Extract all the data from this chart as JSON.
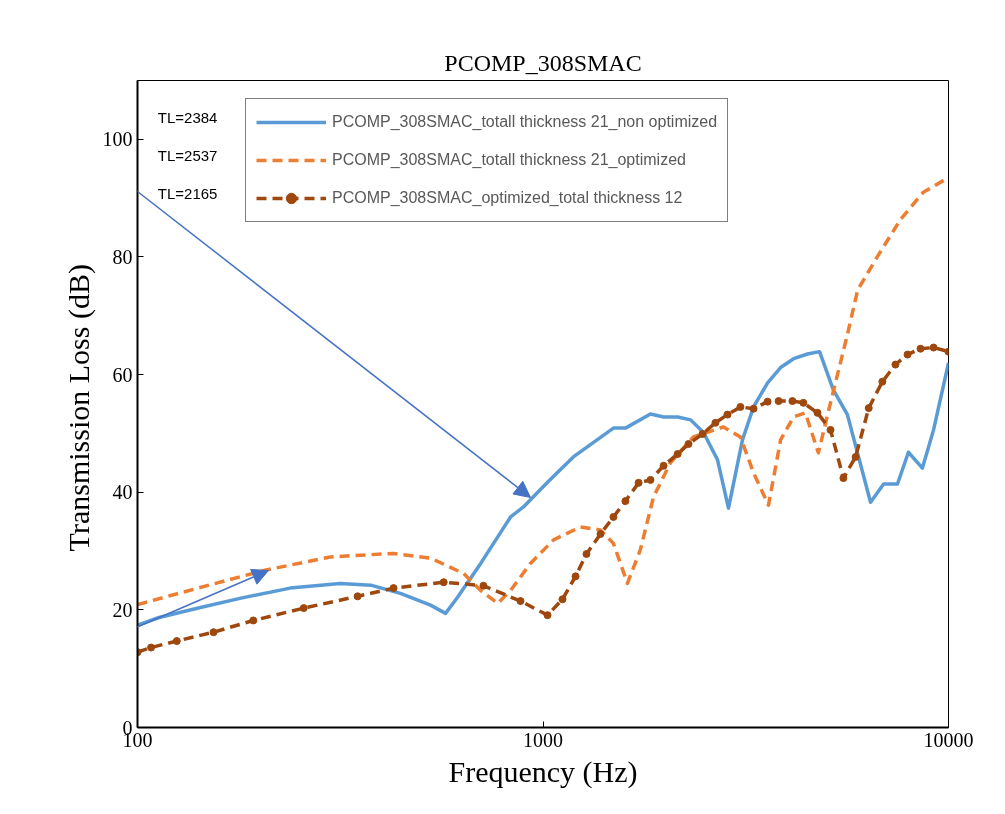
{
  "chart_data": {
    "type": "line",
    "title": "PCOMP_308SMAC",
    "xlabel": "Frequency (Hz)",
    "ylabel": "Transmission Loss  (dB)",
    "log": "x",
    "xlim": [
      100,
      10000
    ],
    "xticks": [
      100,
      1000,
      10000
    ],
    "ylim": [
      0,
      110
    ],
    "yticks": [
      0,
      20,
      40,
      60,
      80,
      100
    ],
    "grid": false,
    "legend": "top left",
    "annotations": [
      "TL=2384",
      "TL=2537",
      "TL=2165"
    ],
    "series": [
      {
        "name": "PCOMP_308SMAC_totall thickness 21_non optimized",
        "color": "#5b9bd5",
        "line_style": "solid",
        "marker": "none",
        "x": [
          100,
          113,
          143,
          180,
          238,
          316,
          376,
          445,
          528,
          575,
          615,
          702,
          832,
          895,
          1026,
          1188,
          1492,
          1597,
          1841,
          1983,
          2148,
          2313,
          2490,
          2694,
          2867,
          3104,
          3305,
          3580,
          3854,
          4150,
          4490,
          4808,
          5200,
          5632,
          6423,
          6918,
          7485,
          7964,
          8623,
          9187,
          10000
        ],
        "values": [
          17.4,
          18.7,
          20.4,
          22,
          23.7,
          24.5,
          24.2,
          22.8,
          20.8,
          19.4,
          22.1,
          27.9,
          35.8,
          37.5,
          41.7,
          46,
          50.9,
          50.9,
          53.3,
          52.8,
          52.8,
          52.3,
          50.1,
          45.5,
          37.3,
          48.9,
          54.5,
          58.6,
          61.2,
          62.7,
          63.5,
          63.9,
          57.4,
          53.2,
          38.3,
          41.4,
          41.4,
          46.8,
          44.1,
          50.6,
          62
        ]
      },
      {
        "name": "PCOMP_308SMAC_totall thickness 21_optimized",
        "color": "#ed7d31",
        "line_style": "dashed",
        "marker": "none",
        "x": [
          100,
          141,
          205,
          299,
          428,
          528,
          637,
          702,
          773,
          832,
          931,
          1062,
          1237,
          1386,
          1492,
          1615,
          1738,
          1873,
          2062,
          2349,
          2787,
          3068,
          3305,
          3598,
          3854,
          4150,
          4436,
          4776,
          5117,
          5632,
          5971,
          6683,
          7622,
          8668,
          10000
        ],
        "values": [
          20.9,
          23.7,
          26.7,
          29,
          29.6,
          28.8,
          26.2,
          23.3,
          21.1,
          23.3,
          27.9,
          31.9,
          34.1,
          33.6,
          31.3,
          24.5,
          30.2,
          39.2,
          45,
          49.4,
          51.1,
          49.4,
          43.3,
          37.8,
          48.9,
          52.8,
          53.5,
          46.7,
          55.2,
          66.8,
          74.4,
          80.1,
          86.4,
          91,
          93.5
        ]
      },
      {
        "name": "PCOMP_308SMAC_optimized_total thickness 12",
        "color": "#9e480e",
        "line_style": "dashed",
        "marker": "circle",
        "x": [
          100,
          108,
          125,
          154,
          193,
          257,
          349,
          428,
          569,
          713,
          880,
          1026,
          1117,
          1203,
          1280,
          1386,
          1492,
          1597,
          1721,
          1841,
          1983,
          2148,
          2285,
          2473,
          2662,
          2851,
          3068,
          3305,
          3580,
          3811,
          4122,
          4386,
          4752,
          5117,
          5506,
          5900,
          6356,
          6870,
          7398,
          7925,
          8531,
          9187,
          10000
        ],
        "values": [
          12.8,
          13.6,
          14.7,
          16.2,
          18.2,
          20.3,
          22.3,
          23.7,
          24.7,
          24.1,
          21.5,
          19.1,
          21.8,
          25.7,
          29.5,
          32.9,
          35.8,
          38.5,
          41.6,
          42.1,
          44.5,
          46.5,
          48.2,
          49.9,
          51.8,
          53.2,
          54.5,
          54.2,
          55.4,
          55.5,
          55.5,
          55.2,
          53.5,
          50.6,
          42.4,
          46,
          54.3,
          58.8,
          61.7,
          63.4,
          64.4,
          64.6,
          63.9
        ]
      }
    ]
  }
}
